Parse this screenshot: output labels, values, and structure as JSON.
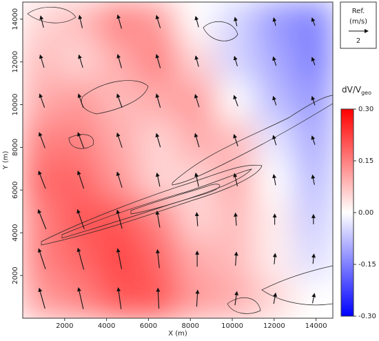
{
  "chart_data": {
    "type": "vector_field",
    "x_label": "X (m)",
    "y_label": "Y (m)",
    "xlim": [
      0,
      14800
    ],
    "ylim": [
      0,
      14800
    ],
    "xticks": [
      2000,
      4000,
      6000,
      8000,
      10000,
      12000,
      14000
    ],
    "yticks": [
      2000,
      4000,
      6000,
      8000,
      10000,
      12000,
      14000
    ],
    "grid_x": [
      925,
      2775,
      4625,
      6475,
      8325,
      10175,
      12025,
      13875
    ],
    "grid_y": [
      13875,
      12025,
      10175,
      8325,
      6475,
      4625,
      2775,
      925
    ],
    "field": [
      [
        0.05,
        0.08,
        0.15,
        0.12,
        0.0,
        -0.05,
        -0.12,
        -0.15
      ],
      [
        0.08,
        0.05,
        0.1,
        0.15,
        0.05,
        -0.05,
        -0.1,
        -0.15
      ],
      [
        0.1,
        0.12,
        0.08,
        0.1,
        0.12,
        0.0,
        -0.08,
        -0.12
      ],
      [
        0.15,
        0.15,
        0.1,
        0.05,
        0.1,
        0.08,
        -0.03,
        -0.1
      ],
      [
        0.18,
        0.18,
        0.12,
        0.05,
        0.05,
        0.1,
        0.0,
        -0.08
      ],
      [
        0.15,
        0.2,
        0.2,
        0.15,
        0.05,
        0.08,
        0.02,
        -0.06
      ],
      [
        0.15,
        0.18,
        0.22,
        0.18,
        0.1,
        0.08,
        0.02,
        -0.04
      ],
      [
        0.12,
        0.15,
        0.2,
        0.2,
        0.12,
        0.1,
        0.05,
        0.0
      ]
    ],
    "u": [
      [
        -0.3,
        -0.3,
        -0.4,
        -0.4,
        -0.3,
        -0.2,
        -0.2,
        -0.3
      ],
      [
        -0.4,
        -0.4,
        -0.4,
        -0.4,
        -0.3,
        -0.3,
        -0.3,
        -0.3
      ],
      [
        -0.5,
        -0.5,
        -0.5,
        -0.4,
        -0.4,
        -0.4,
        -0.3,
        -0.3
      ],
      [
        -0.6,
        -0.6,
        -0.5,
        -0.4,
        -0.4,
        -0.4,
        -0.3,
        -0.3
      ],
      [
        -0.7,
        -0.6,
        -0.5,
        -0.3,
        -0.3,
        -0.3,
        -0.2,
        -0.2
      ],
      [
        -0.8,
        -0.7,
        -0.5,
        -0.3,
        -0.1,
        -0.1,
        0.0,
        0.0
      ],
      [
        -0.7,
        -0.6,
        -0.4,
        -0.2,
        0.0,
        0.1,
        0.1,
        0.1
      ],
      [
        -0.6,
        -0.5,
        -0.3,
        -0.1,
        0.1,
        0.2,
        0.2,
        0.2
      ]
    ],
    "v": [
      [
        1.2,
        1.3,
        1.4,
        1.3,
        1.1,
        0.9,
        0.8,
        0.8
      ],
      [
        1.3,
        1.3,
        1.4,
        1.4,
        1.1,
        1.0,
        0.9,
        0.8
      ],
      [
        1.4,
        1.4,
        1.4,
        1.4,
        1.3,
        1.1,
        0.9,
        0.9
      ],
      [
        1.6,
        1.6,
        1.5,
        1.4,
        1.4,
        1.2,
        1.0,
        0.9
      ],
      [
        1.8,
        1.8,
        1.6,
        1.4,
        1.4,
        1.3,
        1.1,
        1.0
      ],
      [
        2.0,
        2.0,
        1.9,
        1.7,
        1.4,
        1.3,
        1.1,
        1.0
      ],
      [
        2.1,
        2.2,
        2.1,
        1.9,
        1.6,
        1.4,
        1.1,
        1.0
      ],
      [
        2.1,
        2.2,
        2.2,
        2.1,
        1.7,
        1.4,
        1.1,
        1.0
      ]
    ],
    "colorbar_label": "dV/V",
    "colorbar_label_sub": "geo",
    "colorbar_lim": [
      -0.3,
      0.3
    ],
    "colorbar_ticks": [
      {
        "value": 0.3,
        "label": "0.30"
      },
      {
        "value": 0.15,
        "label": "0.15"
      },
      {
        "value": 0.0,
        "label": "0.00"
      },
      {
        "value": -0.15,
        "label": "-0.15"
      },
      {
        "value": -0.3,
        "label": "-0.30"
      }
    ],
    "ref_title": "Ref.",
    "ref_unit": "(m/s)",
    "ref_value": 2
  }
}
